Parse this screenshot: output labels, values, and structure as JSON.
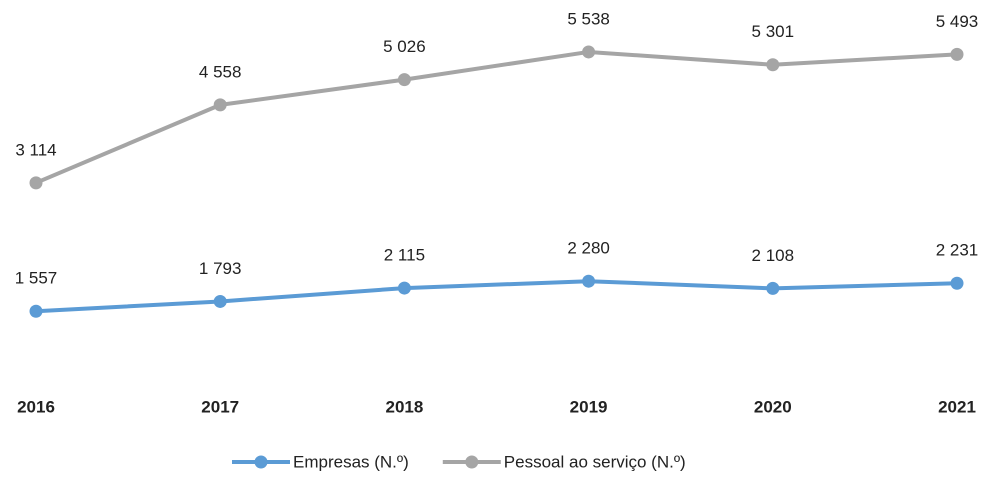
{
  "chart_data": {
    "type": "line",
    "categories": [
      "2016",
      "2017",
      "2018",
      "2019",
      "2020",
      "2021"
    ],
    "series": [
      {
        "name": "Empresas (N.º)",
        "color": "#5b9bd5",
        "axis": "y2",
        "values": [
          1557,
          1793,
          2115,
          2280,
          2108,
          2231
        ],
        "value_labels": [
          "1 557",
          "1 793",
          "2 115",
          "2 280",
          "2 108",
          "2 231"
        ]
      },
      {
        "name": "Pessoal ao serviço (N.º)",
        "color": "#a5a5a5",
        "values": [
          3114,
          4558,
          5026,
          5538,
          5301,
          5493
        ],
        "value_labels": [
          "3 114",
          "4 558",
          "5 026",
          "5 538",
          "5 301",
          "5 493"
        ]
      }
    ],
    "ylim": [
      0,
      6000
    ],
    "y2lim": [
      600,
      8400
    ]
  }
}
